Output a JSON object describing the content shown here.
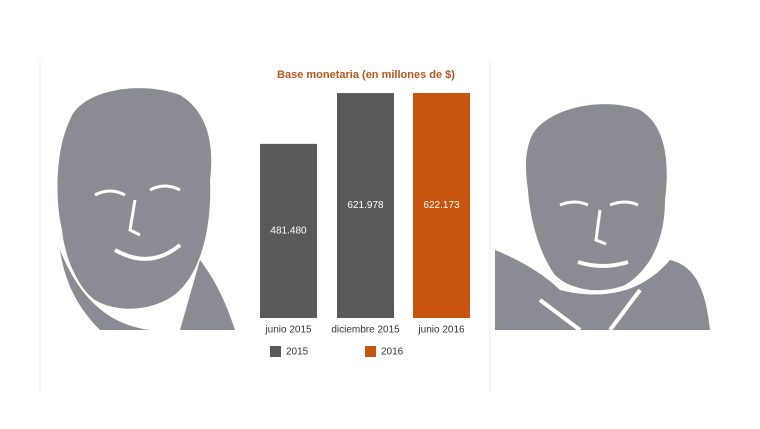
{
  "chart_data": {
    "type": "bar",
    "title": "Base monetaria (en millones de $)",
    "categories": [
      "junio 2015",
      "diciembre 2015",
      "junio 2016"
    ],
    "values": [
      481480,
      621978,
      622173
    ],
    "value_labels": [
      "481.480",
      "621.978",
      "622.173"
    ],
    "colors": [
      "#595959",
      "#595959",
      "#c8550f"
    ],
    "legend": [
      {
        "name": "2015",
        "color": "#595959"
      },
      {
        "name": "2016",
        "color": "#c8550f"
      }
    ]
  }
}
